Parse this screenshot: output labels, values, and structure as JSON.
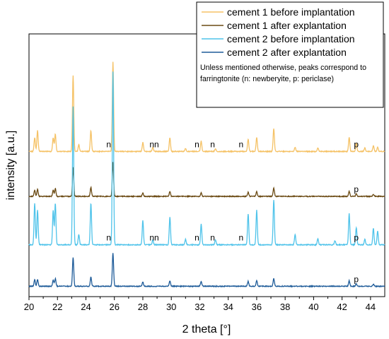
{
  "chart_data": {
    "type": "line",
    "xlabel": "2 theta [°]",
    "ylabel": "intensity [a.u.]",
    "xlim": [
      20,
      45
    ],
    "x_ticks": [
      "20",
      "22",
      "24",
      "26",
      "28",
      "30",
      "32",
      "34",
      "36",
      "38",
      "40",
      "42",
      "44"
    ],
    "y_tick_labels_shown": false,
    "legend_position": "top-right",
    "legend_note": "Unless mentioned otherwise, peaks correspond to farringtonite (n: newberyite, p: periclase)",
    "baseline_note": "Traces are vertically offset for clarity; baseline = offset, values = peak height above baseline in arbitrary units.",
    "series": [
      {
        "name": "cement 1 before implantation",
        "color": "#F5C266",
        "baseline": 15,
        "peaks": [
          [
            20.4,
            2
          ],
          [
            20.6,
            3
          ],
          [
            21.7,
            2
          ],
          [
            21.85,
            2.5
          ],
          [
            23.1,
            11
          ],
          [
            23.5,
            1
          ],
          [
            24.35,
            3
          ],
          [
            25.9,
            13
          ],
          [
            28.0,
            1.3
          ],
          [
            28.7,
            0.6
          ],
          [
            29.9,
            2
          ],
          [
            31.0,
            0.4
          ],
          [
            32.1,
            1.5
          ],
          [
            33.1,
            0.4
          ],
          [
            35.4,
            1.8
          ],
          [
            36.0,
            2
          ],
          [
            37.2,
            3.3
          ],
          [
            38.7,
            0.6
          ],
          [
            40.3,
            0.5
          ],
          [
            42.5,
            2
          ],
          [
            43.0,
            1.2
          ],
          [
            43.6,
            0.5
          ],
          [
            44.2,
            0.8
          ],
          [
            44.5,
            0.6
          ]
        ],
        "annotations": [
          {
            "x": 25.6,
            "text": "n"
          },
          {
            "x": 28.8,
            "text": "nn"
          },
          {
            "x": 31.8,
            "text": "n"
          },
          {
            "x": 32.9,
            "text": "n"
          },
          {
            "x": 34.9,
            "text": "n"
          },
          {
            "x": 43.0,
            "text": "p"
          }
        ]
      },
      {
        "name": "cement 1 after explantation",
        "color": "#6B4A13",
        "baseline": 8.5,
        "peaks": [
          [
            20.4,
            0.9
          ],
          [
            20.6,
            1
          ],
          [
            21.7,
            0.9
          ],
          [
            21.85,
            1.1
          ],
          [
            23.1,
            4.2
          ],
          [
            24.35,
            1.3
          ],
          [
            25.9,
            5
          ],
          [
            28.0,
            0.5
          ],
          [
            29.9,
            0.7
          ],
          [
            32.1,
            0.5
          ],
          [
            35.4,
            0.6
          ],
          [
            36.0,
            0.7
          ],
          [
            37.2,
            1.2
          ],
          [
            42.5,
            0.7
          ],
          [
            43.0,
            0.4
          ],
          [
            44.2,
            0.3
          ]
        ],
        "annotations": [
          {
            "x": 43.0,
            "text": "p"
          }
        ]
      },
      {
        "name": "cement 2 before implantation",
        "color": "#4FC3EA",
        "baseline": 1.5,
        "peaks": [
          [
            20.4,
            6
          ],
          [
            20.6,
            5
          ],
          [
            21.7,
            5
          ],
          [
            21.85,
            6
          ],
          [
            23.1,
            20
          ],
          [
            23.5,
            1.5
          ],
          [
            24.35,
            6
          ],
          [
            25.9,
            25
          ],
          [
            28.0,
            3.5
          ],
          [
            28.7,
            0.7
          ],
          [
            29.9,
            4
          ],
          [
            31.0,
            0.8
          ],
          [
            32.1,
            3
          ],
          [
            33.1,
            0.7
          ],
          [
            35.4,
            4.5
          ],
          [
            36.0,
            5
          ],
          [
            37.2,
            6.5
          ],
          [
            38.7,
            1.5
          ],
          [
            40.3,
            0.9
          ],
          [
            41.5,
            0.6
          ],
          [
            42.5,
            4.5
          ],
          [
            43.0,
            2.5
          ],
          [
            43.6,
            0.8
          ],
          [
            44.2,
            2.4
          ],
          [
            44.5,
            2
          ]
        ],
        "annotations": [
          {
            "x": 25.6,
            "text": "n"
          },
          {
            "x": 28.8,
            "text": "nn"
          },
          {
            "x": 31.8,
            "text": "n"
          },
          {
            "x": 32.9,
            "text": "n"
          },
          {
            "x": 34.9,
            "text": "n"
          },
          {
            "x": 43.0,
            "text": "p"
          }
        ]
      },
      {
        "name": "cement 2 after explantation",
        "color": "#1F5C99",
        "baseline": -4.5,
        "peaks": [
          [
            20.4,
            1
          ],
          [
            20.6,
            1
          ],
          [
            21.7,
            0.9
          ],
          [
            21.85,
            1.1
          ],
          [
            23.1,
            4.2
          ],
          [
            24.35,
            1.3
          ],
          [
            25.9,
            4.8
          ],
          [
            28.0,
            0.6
          ],
          [
            29.9,
            0.8
          ],
          [
            32.1,
            0.7
          ],
          [
            35.4,
            0.7
          ],
          [
            36.0,
            0.8
          ],
          [
            37.2,
            1.1
          ],
          [
            42.5,
            0.8
          ],
          [
            43.0,
            0.4
          ],
          [
            44.2,
            0.3
          ]
        ],
        "annotations": [
          {
            "x": 43.0,
            "text": "p"
          }
        ]
      }
    ]
  }
}
